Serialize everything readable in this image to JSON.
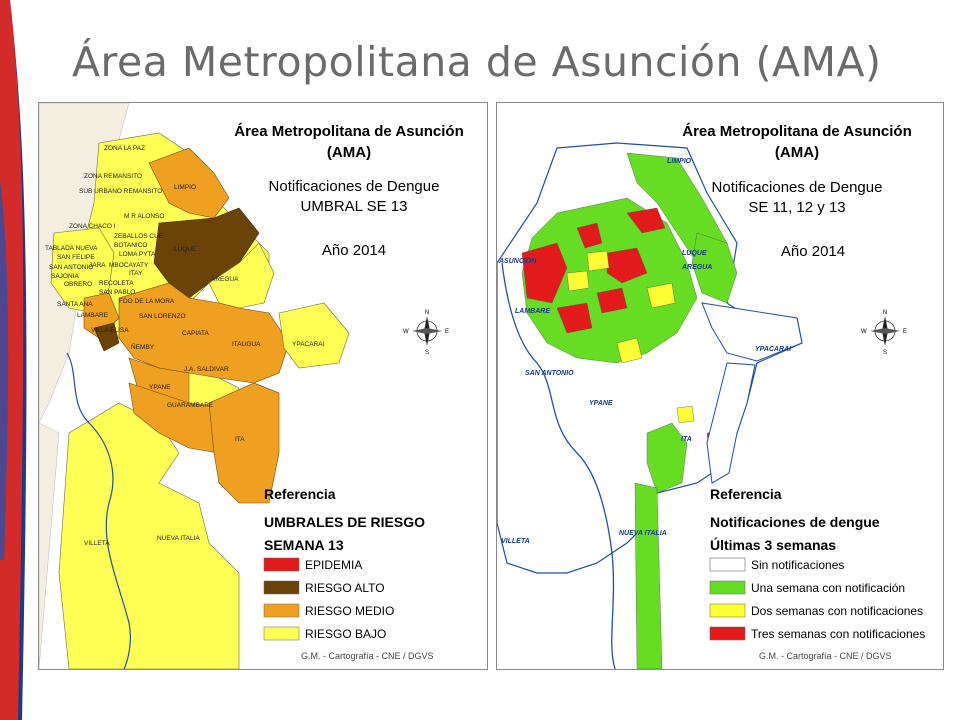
{
  "page": {
    "title": "Área Metropolitana de Asunción (AMA)"
  },
  "colors": {
    "epidemia": "#e31a1c",
    "riesgo_alto": "#6b4207",
    "riesgo_medio": "#f0a020",
    "riesgo_bajo": "#ffff55",
    "sin_notif": "#ffffff",
    "una_semana": "#66dd22",
    "dos_semanas": "#ffff33",
    "tres_semanas": "#e31a1c",
    "river": "#1f4fa0"
  },
  "left_map": {
    "title_line1": "Área Metropolitana de Asunción",
    "title_line2": "(AMA)",
    "subtitle_line1": "Notificaciones de Dengue",
    "subtitle_line2": "UMBRAL SE 13",
    "year": "Año 2014",
    "reference_heading": "Referencia",
    "legend_title": "UMBRALES DE RIESGO",
    "legend_subtitle": "SEMANA 13",
    "legend": [
      {
        "label": "EPIDEMIA",
        "color": "#e31a1c"
      },
      {
        "label": "RIESGO ALTO",
        "color": "#6b4207"
      },
      {
        "label": "RIESGO MEDIO",
        "color": "#f0a020"
      },
      {
        "label": "RIESGO BAJO",
        "color": "#ffff55"
      }
    ],
    "places": [
      "ZONA LA PAZ",
      "ZONA REMANSITO",
      "SUB URBANO REMANSITO",
      "LIMPIO",
      "M R ALONSO",
      "ZONA CHACO I",
      "ZEBALLOS CUE",
      "BOTANICO",
      "TABLADA NUEVA",
      "SAN FELIPE",
      "LOMA PYTA",
      "JARA",
      "MBOCAYATY",
      "LUQUE",
      "SAN ANTONIO",
      "SAJONIA",
      "ITAY",
      "OBRERO",
      "RECOLETA",
      "SAN PABLO",
      "SANTA ANA",
      "FDO DE LA MORA",
      "AREGUA",
      "SAN LORENZO",
      "LAMBARE",
      "VILLA ELISA",
      "CAPIATA",
      "ÑEMBY",
      "ITAUGUA",
      "YPACARAI",
      "J.A. SALDIVAR",
      "YPANE",
      "GUARAMBARE",
      "ITA",
      "VILLETA",
      "NUEVA ITALIA"
    ],
    "compass": {
      "n": "N",
      "s": "S",
      "e": "E",
      "w": "W"
    },
    "credit": "G.M. - Cartografía - CNE / DGVS"
  },
  "right_map": {
    "title_line1": "Área Metropolitana de Asunción",
    "title_line2": "(AMA)",
    "subtitle_line1": "Notificaciones de Dengue",
    "subtitle_line2": "SE 11, 12  y 13",
    "year": "Año 2014",
    "reference_heading": "Referencia",
    "legend_title": "Notificaciones de dengue",
    "legend_subtitle": "Últimas 3 semanas",
    "legend": [
      {
        "label": "Sin notificaciones",
        "color": "#ffffff"
      },
      {
        "label": "Una semana con notificación",
        "color": "#66dd22"
      },
      {
        "label": "Dos semanas con notificaciones",
        "color": "#ffff33"
      },
      {
        "label": "Tres semanas con notificaciones",
        "color": "#e31a1c"
      }
    ],
    "places": [
      "LIMPIO",
      "ASUNCION",
      "LUQUE",
      "AREGUA",
      "LAMBARE",
      "SAN ANTONIO",
      "YPACARAI",
      "YPANE",
      "ITA",
      "VILLETA",
      "NUEVA ITALIA"
    ],
    "compass": {
      "n": "N",
      "s": "S",
      "e": "E",
      "w": "W"
    },
    "credit": "G.M. - Cartografía - CNE / DGVS"
  }
}
